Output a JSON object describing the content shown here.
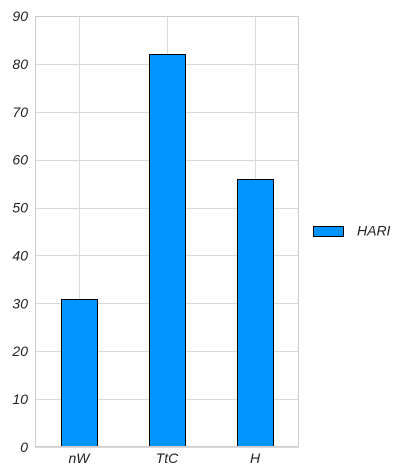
{
  "chart_data": {
    "type": "bar",
    "categories": [
      "nW",
      "TtC",
      "H"
    ],
    "series": [
      {
        "name": "HARI",
        "values": [
          31,
          82,
          56
        ],
        "color": "#0094ff"
      }
    ],
    "ylim": [
      0,
      90
    ],
    "yticks": [
      0,
      10,
      20,
      30,
      40,
      50,
      60,
      70,
      80,
      90
    ],
    "grid": true,
    "legend": "right"
  }
}
